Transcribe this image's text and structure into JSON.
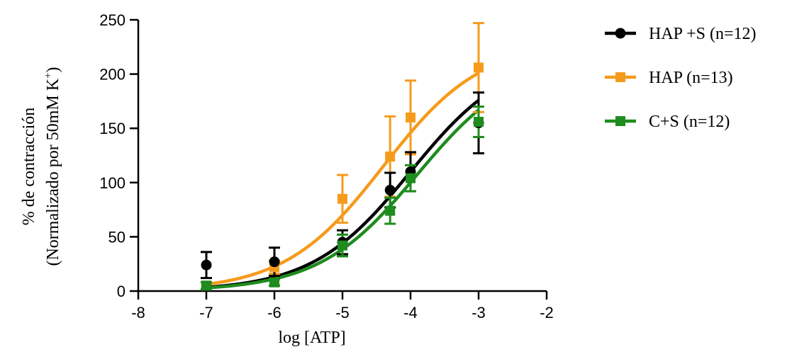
{
  "chart_data": {
    "type": "scatter",
    "title": "",
    "xlabel": "log [ATP]",
    "ylabel_line1": "% de contracción",
    "ylabel_line2_main": "(Normalizado por 50mM K",
    "ylabel_line2_sup": "+",
    "ylabel_line2_end": ")",
    "xlim": [
      -8,
      -2
    ],
    "ylim": [
      0,
      250
    ],
    "xticks": [
      -8,
      -7,
      -6,
      -5,
      -4,
      -3,
      -2
    ],
    "yticks": [
      0,
      50,
      100,
      150,
      200,
      250
    ],
    "legend_position": "right",
    "series": [
      {
        "name": "HAP +S (n=12)",
        "color": "#000000",
        "marker": "circle",
        "x": [
          -7,
          -6,
          -5,
          -4.3,
          -4,
          -3
        ],
        "y": [
          24,
          27,
          45,
          93,
          110,
          155
        ],
        "err": [
          12,
          13,
          11,
          16,
          18,
          28
        ],
        "fit": {
          "bottom": 0,
          "top": 220,
          "logEC50": -4.0,
          "hill": 0.6
        }
      },
      {
        "name": "HAP  (n=13)",
        "color": "#F59B1C",
        "marker": "square",
        "x": [
          -7,
          -6,
          -5,
          -4.3,
          -4,
          -3
        ],
        "y": [
          5,
          22,
          85,
          124,
          160,
          206
        ],
        "err": [
          3,
          6,
          22,
          37,
          34,
          41
        ],
        "fit": {
          "bottom": 0,
          "top": 230,
          "logEC50": -4.4,
          "hill": 0.6
        }
      },
      {
        "name": "C+S (n=12)",
        "color": "#1E8C1E",
        "marker": "square",
        "x": [
          -7,
          -6,
          -5,
          -4.3,
          -4,
          -3
        ],
        "y": [
          5,
          8,
          42,
          74,
          104,
          156
        ],
        "err": [
          3,
          3,
          10,
          12,
          12,
          14
        ],
        "fit": {
          "bottom": 0,
          "top": 215,
          "logEC50": -3.9,
          "hill": 0.6
        }
      }
    ]
  }
}
